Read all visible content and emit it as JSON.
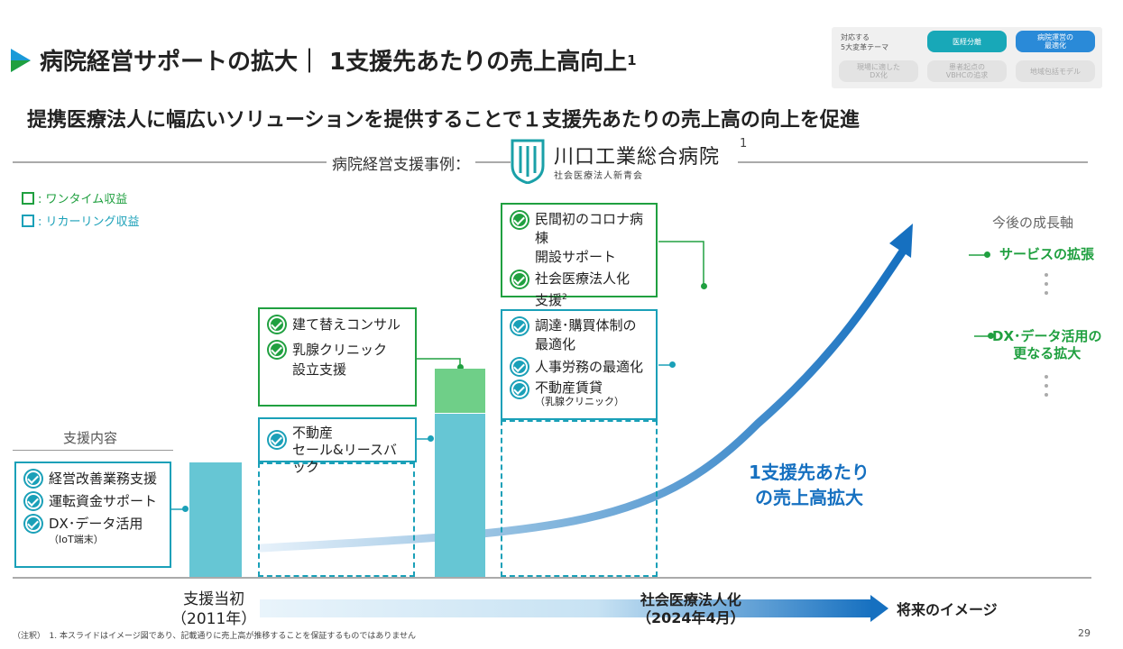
{
  "header": {
    "title": "病院経営サポートの拡大｜ 1支援先あたりの売上高向上",
    "title_sup": "1",
    "subtitle": "提携医療法人に幅広いソリューションを提供することで１支援先あたりの売上高の向上を促進"
  },
  "theme_panel": {
    "label_line1": "対応する",
    "label_line2": "5大変革テーマ",
    "pills": [
      {
        "line1": "医経分離",
        "line2": "",
        "active": true,
        "color": "#18a8b8"
      },
      {
        "line1": "病院運営の",
        "line2": "最適化",
        "active": true,
        "color": "#2a8ad8"
      },
      {
        "line1": "現場に適した",
        "line2": "DX化",
        "active": false
      },
      {
        "line1": "患者起点の",
        "line2": "VBHCの追求",
        "active": false
      },
      {
        "line1": "地域包括モデル",
        "line2": "",
        "active": false
      }
    ]
  },
  "case": {
    "label": "病院経営支援事例：",
    "hospital_name": "川口工業総合病院",
    "hospital_sub": "社会医療法人新青会",
    "sup": "1"
  },
  "legend": {
    "one_time": ": ワンタイム収益",
    "recurring": ": リカーリング収益"
  },
  "support_label": "支援内容",
  "boxes": {
    "initial": {
      "items": [
        "経営改善業務支援",
        "運転資金サポート",
        "DX･データ活用"
      ],
      "note": "（IoT端末）"
    },
    "mid_green": {
      "items": [
        "建て替えコンサル",
        "乳腺クリニック",
        "設立支援"
      ]
    },
    "mid_blue": {
      "item1": "不動産",
      "item2": "セール&リースバック"
    },
    "top_green": {
      "item1a": "民間初のコロナ病棟",
      "item1b": "開設サポート",
      "item2a": "社会医療法人化",
      "item2b": "支援",
      "item2sup": "2"
    },
    "right_blue": {
      "item1a": "調達･購買体制の",
      "item1b": "最適化",
      "item2": "人事労務の最適化",
      "item3": "不動産賃貸",
      "item3note": "（乳腺クリニック）"
    }
  },
  "growth": {
    "label": "今後の成長軸",
    "item1": "サービスの拡張",
    "item2a": "DX･データ活用の",
    "item2b": "更なる拡大"
  },
  "big_text": {
    "line1": "1支援先あたり",
    "line2": "の売上高拡大"
  },
  "timeline": {
    "start_a": "支援当初",
    "start_b": "（2011年）",
    "mid_a": "社会医療法人化",
    "mid_b": "（2024年4月）",
    "future": "将来のイメージ"
  },
  "footnote": "（注釈）　1. 本スライドはイメージ図であり、記載通りに売上高が推移することを保証するものではありません",
  "page_number": "29",
  "colors": {
    "green": "#20a040",
    "blue": "#1aa0b8",
    "dark_blue": "#1670c0",
    "light_green": "#6fcf88",
    "bar_blue": "#66c6d4"
  }
}
